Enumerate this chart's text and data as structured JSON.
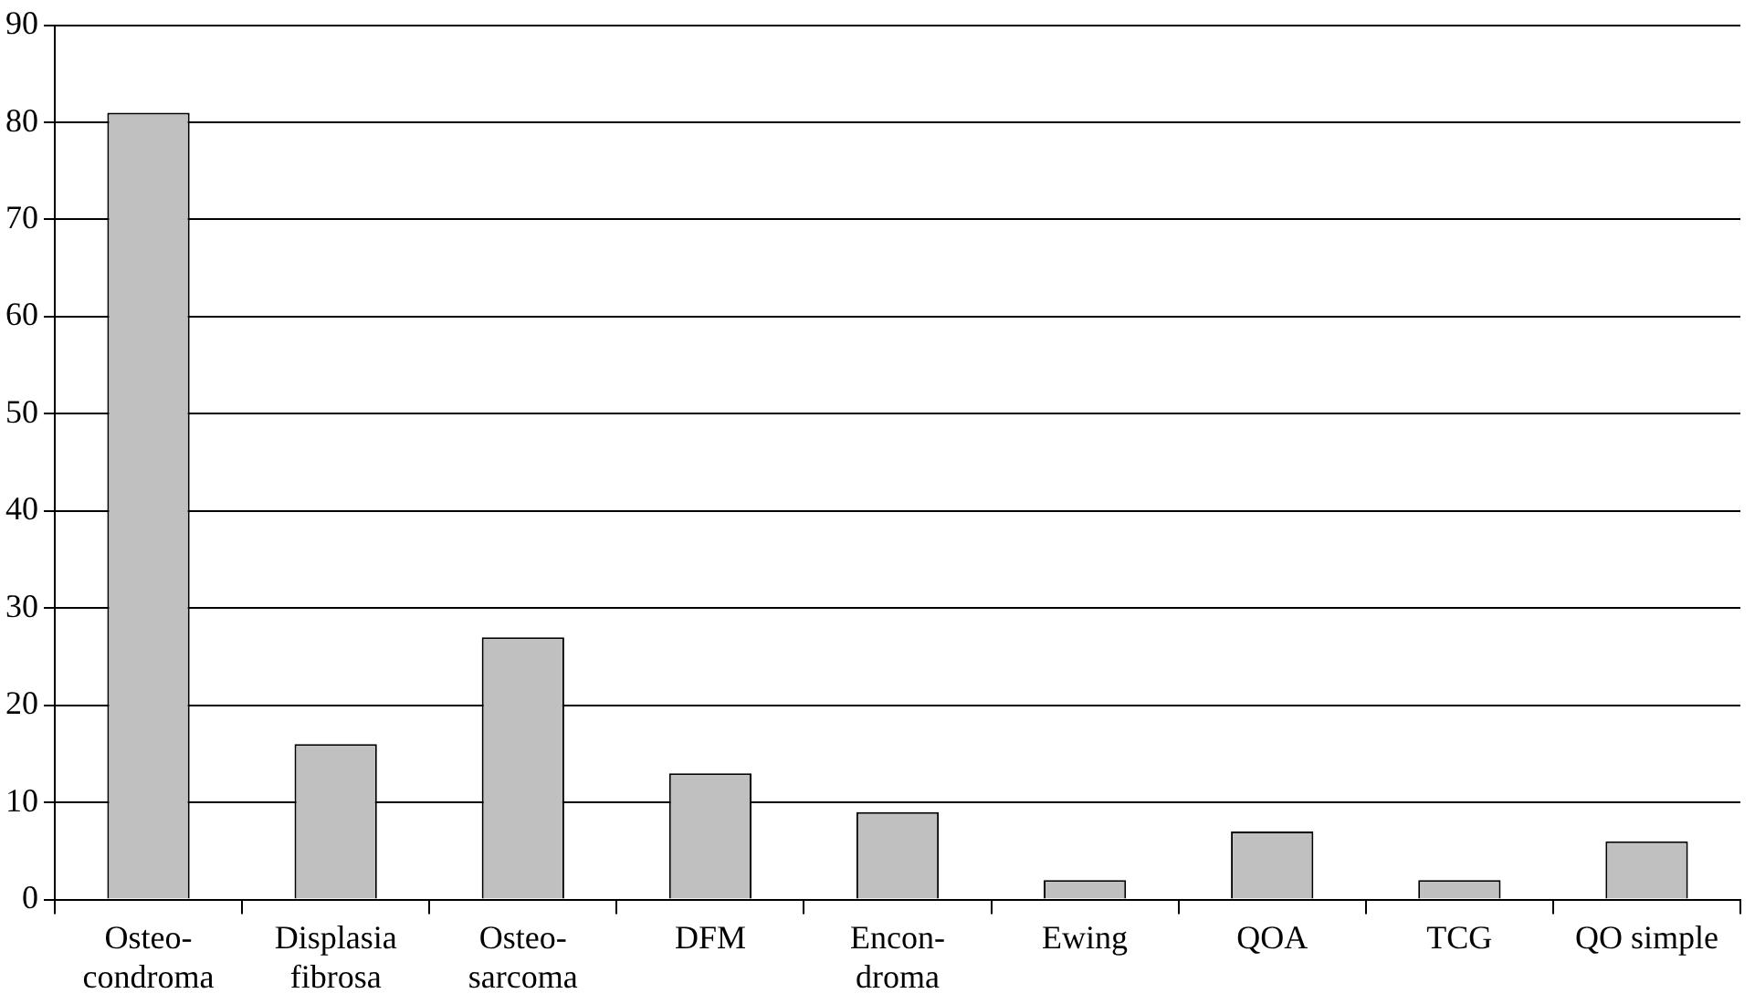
{
  "chart_data": {
    "type": "bar",
    "categories": [
      "Osteo-\ncondroma",
      "Displasia\nfibrosa",
      "Osteo-\nsarcoma",
      "DFM",
      "Encon-\ndroma",
      "Ewing",
      "QOA",
      "TCG",
      "QO simple"
    ],
    "values": [
      81,
      16,
      27,
      13,
      9,
      2,
      7,
      2,
      6
    ],
    "color": "#c0c0c0",
    "ylim": [
      0,
      90
    ],
    "yticks": [
      0,
      10,
      20,
      30,
      40,
      50,
      60,
      70,
      80,
      90
    ],
    "grid": "y",
    "legend": false
  }
}
